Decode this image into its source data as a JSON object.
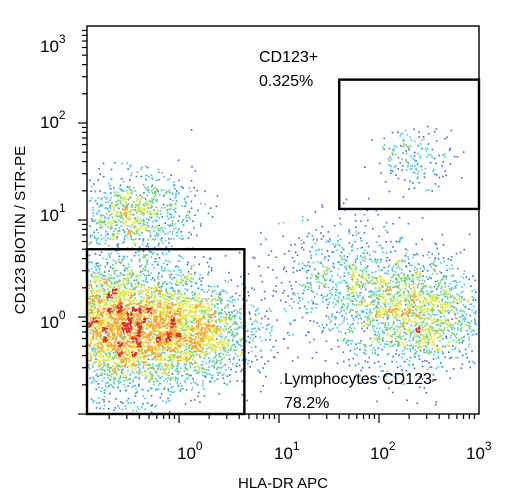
{
  "chart_data": {
    "type": "scatter",
    "subtype": "flow-cytometry-density",
    "xlabel": "HLA-DR APC",
    "ylabel": "CD123 BIOTIN / STR-PE",
    "x_scale": "log",
    "y_scale": "log",
    "xlim": [
      0.12,
      1000
    ],
    "ylim": [
      0.1,
      1000
    ],
    "x_ticks": [
      {
        "value": 1,
        "base": "10",
        "exp": "0"
      },
      {
        "value": 10,
        "base": "10",
        "exp": "1"
      },
      {
        "value": 100,
        "base": "10",
        "exp": "2"
      },
      {
        "value": 1000,
        "base": "10",
        "exp": "3"
      }
    ],
    "y_ticks": [
      {
        "value": 1,
        "base": "10",
        "exp": "0"
      },
      {
        "value": 10,
        "base": "10",
        "exp": "1"
      },
      {
        "value": 100,
        "base": "10",
        "exp": "2"
      },
      {
        "value": 1000,
        "base": "10",
        "exp": "3"
      }
    ],
    "colormap": [
      "#3a2ba0",
      "#2f6fd8",
      "#3fc6e0",
      "#6fd06a",
      "#d9e83a",
      "#f5a623",
      "#e8241c"
    ],
    "populations": [
      {
        "center": [
          0.25,
          0.8
        ],
        "spread": [
          0.45,
          0.35
        ],
        "weight": 10
      },
      {
        "center": [
          1.5,
          0.7
        ],
        "spread": [
          0.35,
          0.25
        ],
        "weight": 3
      },
      {
        "center": [
          0.35,
          12
        ],
        "spread": [
          0.3,
          0.2
        ],
        "weight": 2
      },
      {
        "center": [
          220,
          1.1
        ],
        "spread": [
          0.35,
          0.3
        ],
        "weight": 4
      },
      {
        "center": [
          40,
          2.5
        ],
        "spread": [
          0.35,
          0.3
        ],
        "weight": 1.5
      },
      {
        "center": [
          230,
          45
        ],
        "spread": [
          0.2,
          0.15
        ],
        "weight": 0.4
      }
    ],
    "gates": [
      {
        "name": "CD123+",
        "percent": "0.325%",
        "x_range": [
          40,
          1000
        ],
        "y_range": [
          13,
          280
        ]
      },
      {
        "name": "Lymphocytes CD123-",
        "percent": "78.2%",
        "x_range": [
          0.12,
          4.5
        ],
        "y_range": [
          0.1,
          5
        ]
      }
    ]
  }
}
